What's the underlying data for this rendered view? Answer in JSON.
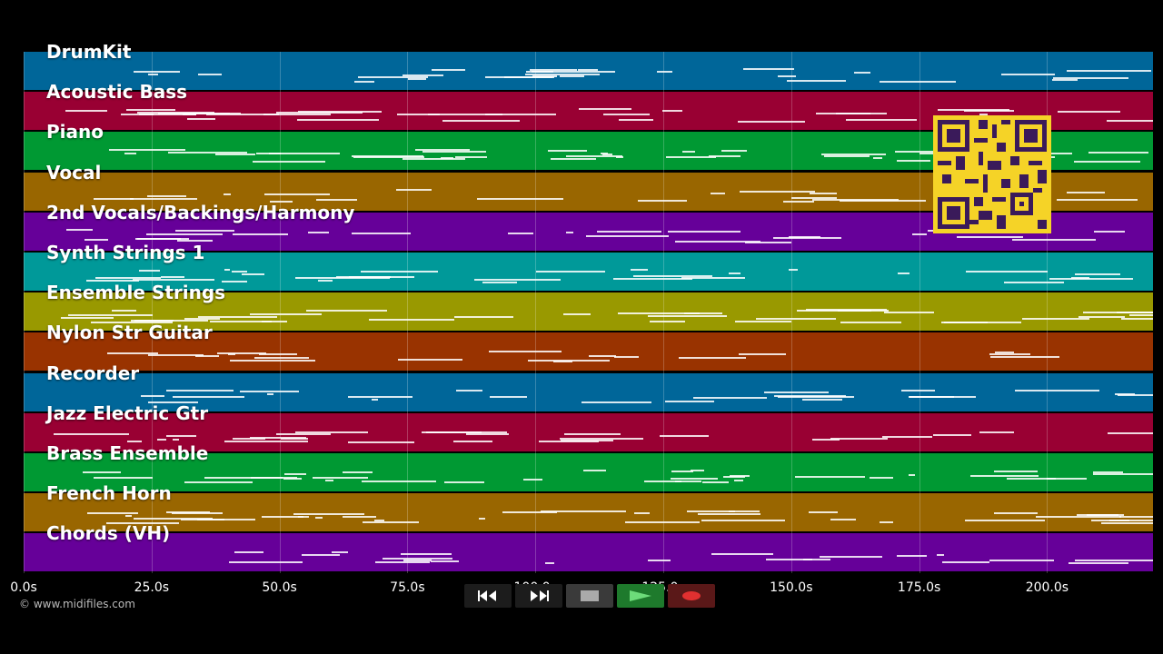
{
  "tracks": [
    {
      "name": "DrumKit",
      "color": "#006699"
    },
    {
      "name": "Acoustic Bass",
      "color": "#990033"
    },
    {
      "name": "Piano",
      "color": "#009933"
    },
    {
      "name": "Vocal",
      "color": "#996600"
    },
    {
      "name": "2nd Vocals/Backings/Harmony",
      "color": "#660099"
    },
    {
      "name": "Synth Strings 1",
      "color": "#009999"
    },
    {
      "name": "Ensemble Strings",
      "color": "#999900"
    },
    {
      "name": "Nylon Str Guitar",
      "color": "#993300"
    },
    {
      "name": "Recorder",
      "color": "#006699"
    },
    {
      "name": "Jazz Electric Gtr",
      "color": "#990033"
    },
    {
      "name": "Brass Ensemble",
      "color": "#009933"
    },
    {
      "name": "French Horn",
      "color": "#996600"
    },
    {
      "name": "Chords (VH)",
      "color": "#660099"
    }
  ],
  "timeline": {
    "ticks": [
      "0.0s",
      "25.0s",
      "50.0s",
      "75.0s",
      "100.0s",
      "125.0s",
      "150.0s",
      "175.0s",
      "200.0s"
    ]
  },
  "copyright": "© www.midifiles.com",
  "transport": {
    "rewind": "rewind-icon",
    "fast_forward": "fast-forward-icon",
    "stop": "stop-icon",
    "play": "play-icon",
    "record": "record-icon"
  },
  "qr_color": "#f5d327"
}
